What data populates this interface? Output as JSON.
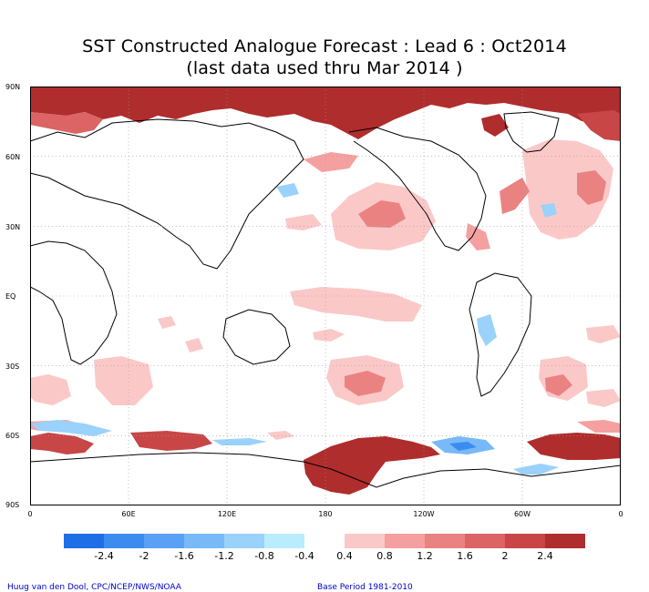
{
  "title_line1": "SST Constructed Analogue Forecast : Lead 6 : Oct2014",
  "title_line2": "(last data used thru Mar 2014 )",
  "lat_labels": [
    "90N",
    "60N",
    "30N",
    "EQ",
    "30S",
    "60S",
    "90S"
  ],
  "lon_labels": [
    "0",
    "60E",
    "120E",
    "180",
    "120W",
    "60W",
    "0"
  ],
  "colorbar": {
    "negative": [
      {
        "color": "#1e6ee6",
        "label": "-2.4"
      },
      {
        "color": "#3c8cf0",
        "label": "-2"
      },
      {
        "color": "#5aa0f5",
        "label": "-1.6"
      },
      {
        "color": "#78b9f8",
        "label": "-1.2"
      },
      {
        "color": "#9ad2fb",
        "label": "-0.8"
      },
      {
        "color": "#b9ecfd",
        "label": "-0.4"
      }
    ],
    "positive": [
      {
        "color": "#fbc8c8",
        "label": "0.4"
      },
      {
        "color": "#f5a0a0",
        "label": "0.8"
      },
      {
        "color": "#eb8282",
        "label": "1.2"
      },
      {
        "color": "#dc6464",
        "label": "1.6"
      },
      {
        "color": "#c84646",
        "label": "2"
      },
      {
        "color": "#af2d2d",
        "label": "2.4"
      }
    ]
  },
  "credit_left": "Huug van den Dool, CPC/NCEP/NWS/NOAA",
  "credit_right": "Base Period 1981-2010",
  "colors": {
    "warm_light": "#fbc8c8",
    "warm_mid": "#eb8282",
    "warm_dark": "#af2d2d",
    "cool_light": "#9ad2fb",
    "cool_dark": "#3c8cf0",
    "coast": "#000000",
    "grid": "#9a9a9a"
  }
}
